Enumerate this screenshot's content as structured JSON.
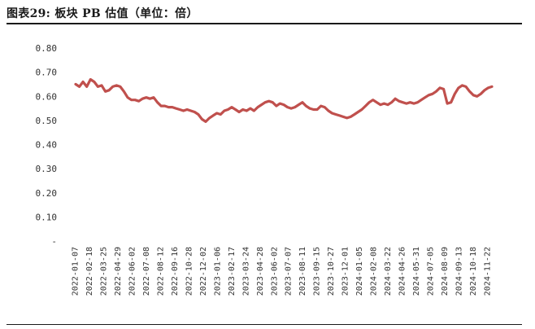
{
  "title": "图表29:  板块 PB 估值（单位：倍）",
  "chart_data": {
    "type": "line",
    "title": "",
    "xlabel": "",
    "ylabel": "",
    "ylim": [
      0,
      0.8
    ],
    "y_ticks": [
      "-",
      "0.10",
      "0.20",
      "0.30",
      "0.40",
      "0.50",
      "0.60",
      "0.70",
      "0.80"
    ],
    "x_tick_labels": [
      "2022-01-07",
      "2022-02-18",
      "2022-03-25",
      "2022-04-29",
      "2022-06-02",
      "2022-07-08",
      "2022-08-12",
      "2022-09-16",
      "2022-10-28",
      "2022-12-02",
      "2023-01-06",
      "2023-02-17",
      "2023-03-24",
      "2023-04-28",
      "2023-06-02",
      "2023-07-07",
      "2023-08-11",
      "2023-09-15",
      "2023-10-27",
      "2023-12-01",
      "2024-01-05",
      "2024-02-08",
      "2024-03-22",
      "2024-04-26",
      "2024-05-31",
      "2024-07-05",
      "2024-08-09",
      "2024-09-13",
      "2024-10-18",
      "2024-11-22"
    ],
    "grid": false,
    "legend": "none",
    "series": [
      {
        "color": "#c0504d",
        "values": [
          0.65,
          0.64,
          0.66,
          0.64,
          0.67,
          0.66,
          0.64,
          0.645,
          0.62,
          0.625,
          0.64,
          0.645,
          0.64,
          0.62,
          0.595,
          0.585,
          0.585,
          0.58,
          0.59,
          0.595,
          0.59,
          0.595,
          0.575,
          0.56,
          0.56,
          0.555,
          0.555,
          0.55,
          0.545,
          0.54,
          0.545,
          0.54,
          0.535,
          0.525,
          0.505,
          0.495,
          0.51,
          0.52,
          0.53,
          0.525,
          0.54,
          0.545,
          0.555,
          0.545,
          0.535,
          0.545,
          0.54,
          0.55,
          0.54,
          0.555,
          0.565,
          0.575,
          0.58,
          0.575,
          0.56,
          0.57,
          0.565,
          0.555,
          0.55,
          0.555,
          0.565,
          0.575,
          0.56,
          0.55,
          0.545,
          0.545,
          0.56,
          0.555,
          0.54,
          0.53,
          0.525,
          0.52,
          0.515,
          0.51,
          0.515,
          0.525,
          0.535,
          0.545,
          0.56,
          0.575,
          0.585,
          0.575,
          0.565,
          0.57,
          0.565,
          0.575,
          0.59,
          0.58,
          0.575,
          0.57,
          0.575,
          0.57,
          0.575,
          0.585,
          0.595,
          0.605,
          0.61,
          0.62,
          0.635,
          0.63,
          0.57,
          0.575,
          0.61,
          0.635,
          0.645,
          0.64,
          0.62,
          0.605,
          0.6,
          0.61,
          0.625,
          0.635,
          0.64
        ]
      }
    ]
  }
}
